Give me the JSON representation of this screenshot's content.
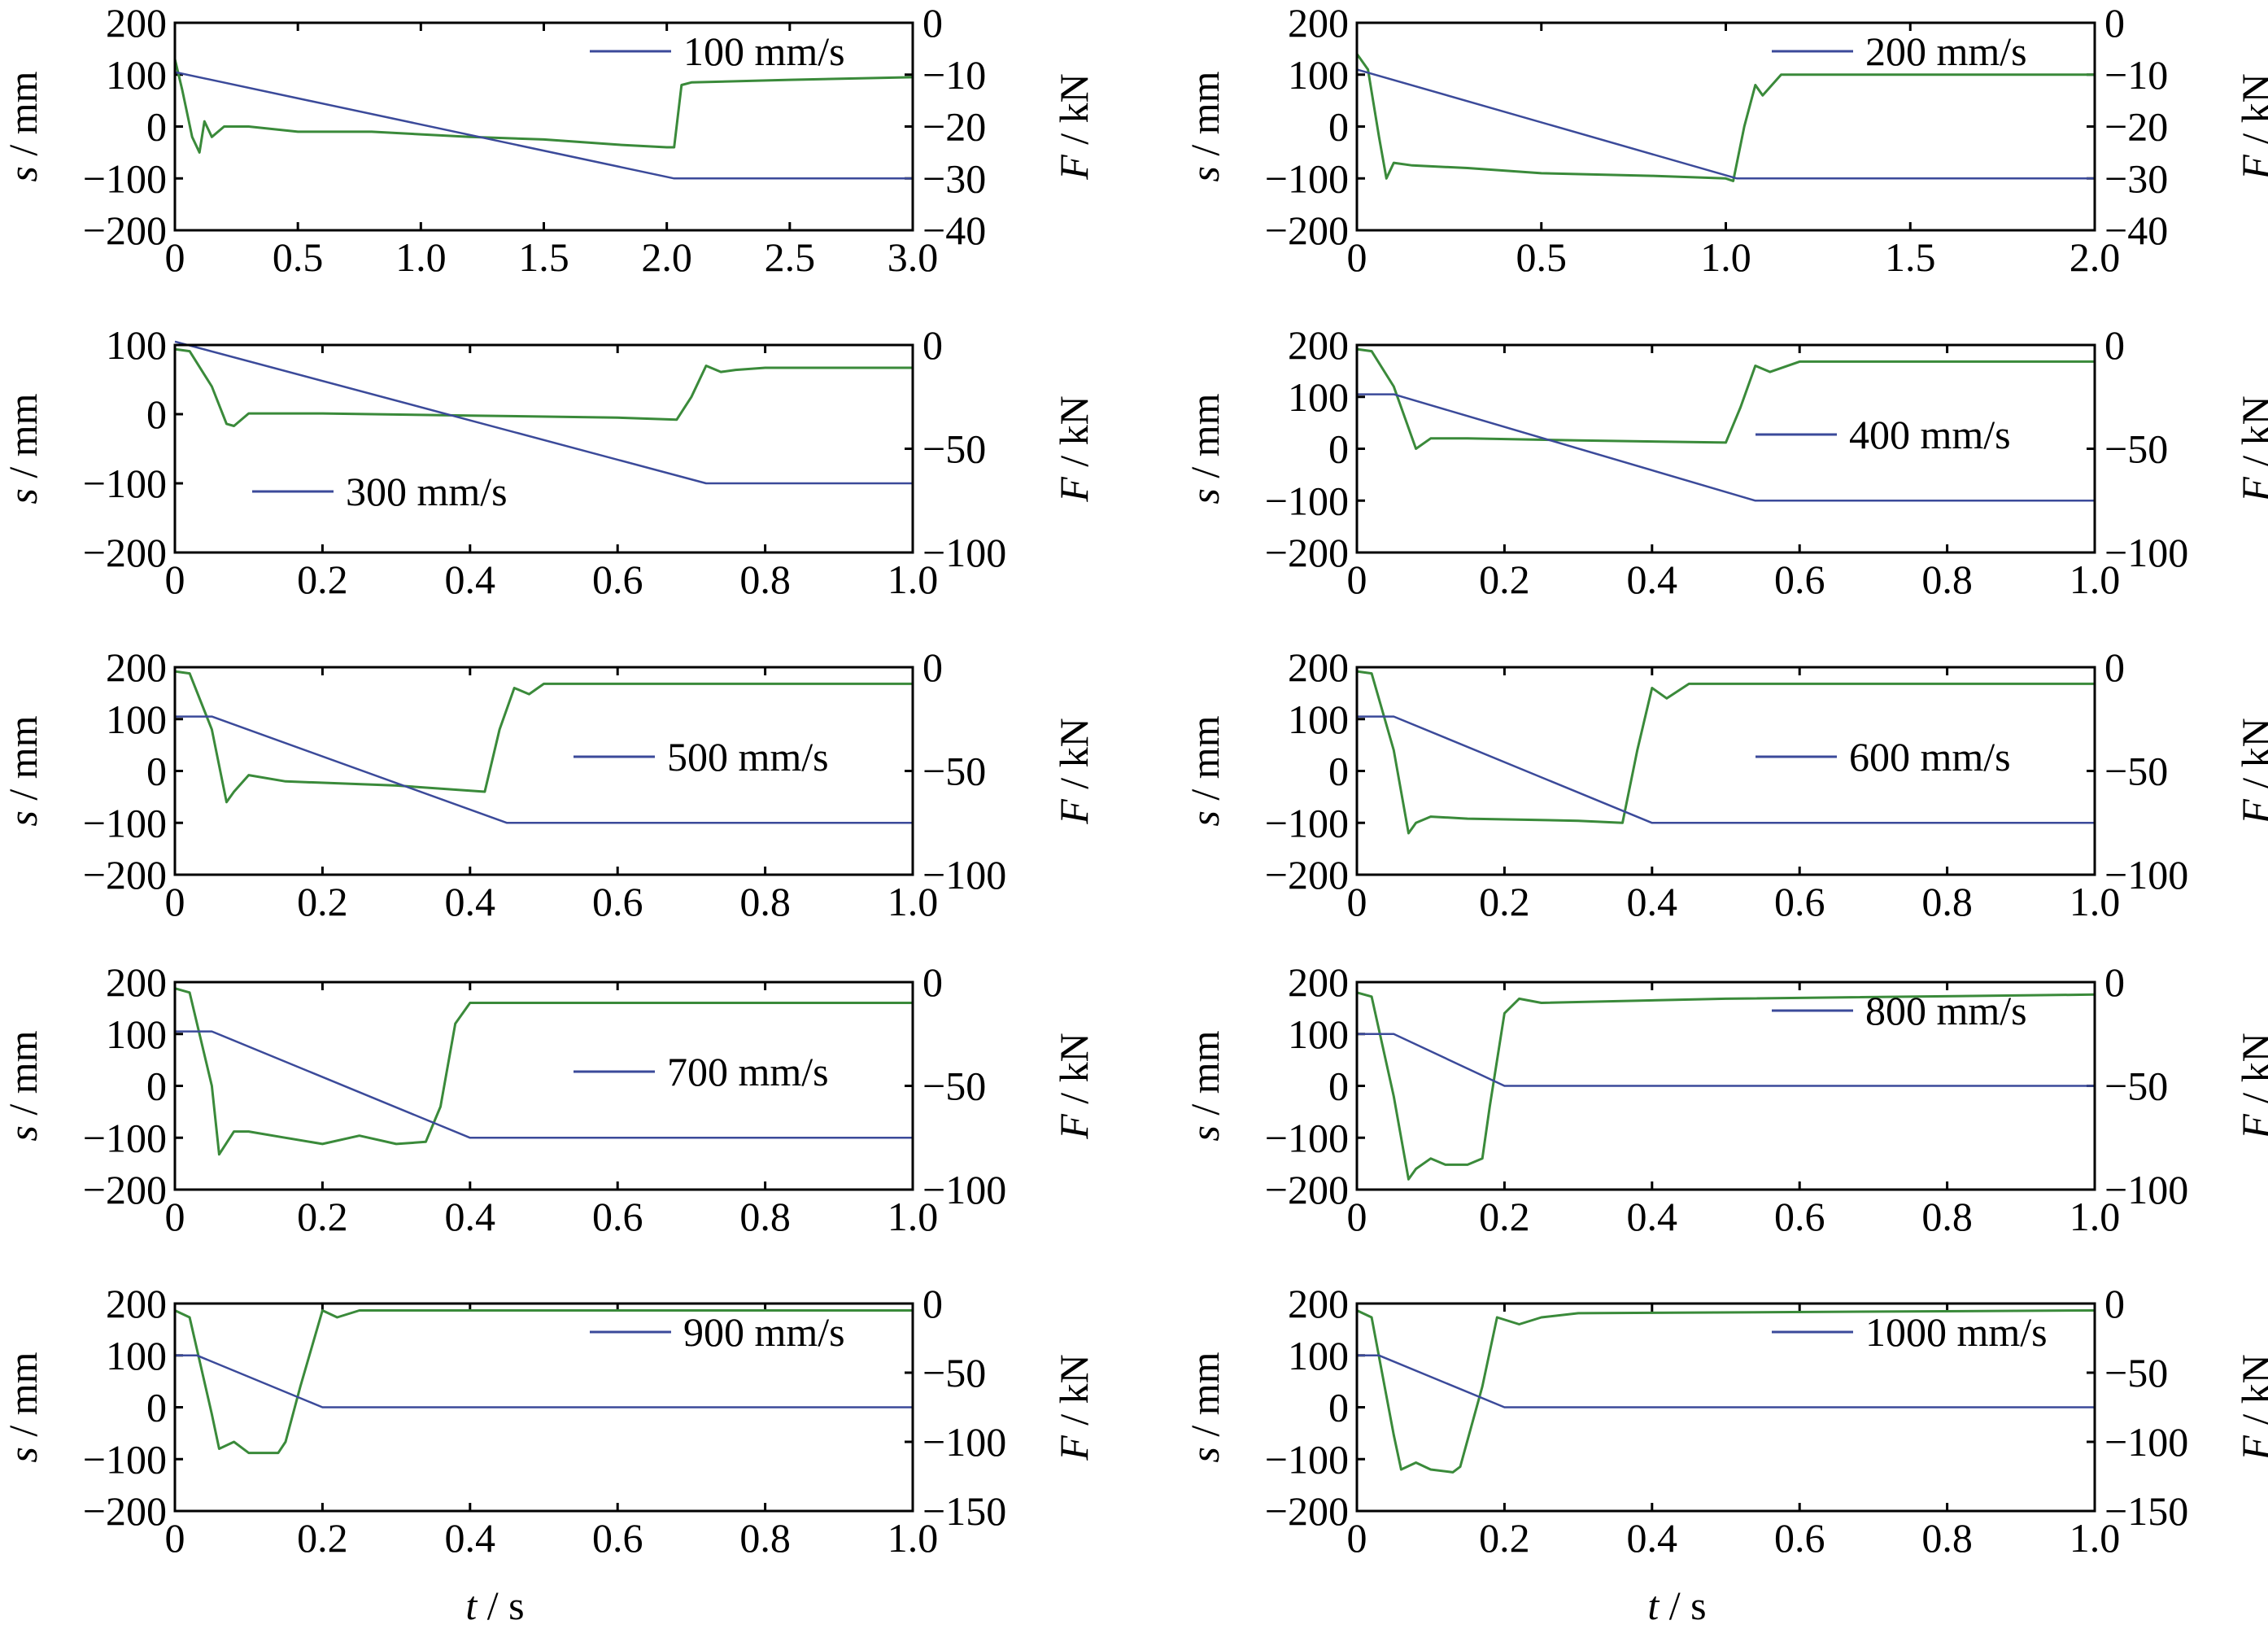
{
  "figure": {
    "xlabel_var": "t",
    "xlabel_unit": " / s",
    "left_label_var": "s",
    "left_label_unit": " / mm",
    "right_label_var": "F",
    "right_label_unit": " / kN"
  },
  "colors": {
    "displacement": "#3b4a9a",
    "force": "#3a8a3a"
  },
  "chart_data": [
    {
      "type": "line",
      "legend": "100 mm/s",
      "legend_pos": "top-right",
      "xlim": [
        0,
        3.0
      ],
      "xticks": [
        "0",
        "0.5",
        "1.0",
        "1.5",
        "2.0",
        "2.5",
        "3.0"
      ],
      "ylim": [
        -200,
        200
      ],
      "yticks": [
        "200",
        "100",
        "0",
        "−100",
        "−200"
      ],
      "y2lim": [
        -40,
        0
      ],
      "y2ticks": [
        "0",
        "−10",
        "−20",
        "−30",
        "−40"
      ],
      "displacement": {
        "x": [
          0,
          2.03,
          3.0
        ],
        "y": [
          105,
          -100,
          -100
        ]
      },
      "force": {
        "x": [
          0,
          0.03,
          0.07,
          0.1,
          0.12,
          0.15,
          0.2,
          0.3,
          0.5,
          0.8,
          1.0,
          1.2,
          1.5,
          1.8,
          2.0,
          2.03,
          2.06,
          2.1,
          2.5,
          3.0
        ],
        "y": [
          -7,
          -13,
          -22,
          -25,
          -19,
          -22,
          -20,
          -20,
          -21,
          -21,
          -21.5,
          -22,
          -22.5,
          -23.5,
          -24,
          -24,
          -12,
          -11.5,
          -11,
          -10.5
        ]
      }
    },
    {
      "type": "line",
      "legend": "200 mm/s",
      "legend_pos": "top-right",
      "xlim": [
        0,
        2.0
      ],
      "xticks": [
        "0",
        "0.5",
        "1.0",
        "1.5",
        "2.0"
      ],
      "ylim": [
        -200,
        200
      ],
      "yticks": [
        "200",
        "100",
        "0",
        "−100",
        "−200"
      ],
      "y2lim": [
        -40,
        0
      ],
      "y2ticks": [
        "0",
        "−10",
        "−20",
        "−30",
        "−40"
      ],
      "displacement": {
        "x": [
          0,
          1.03,
          2.0
        ],
        "y": [
          110,
          -100,
          -100
        ]
      },
      "force": {
        "x": [
          0,
          0.03,
          0.06,
          0.08,
          0.1,
          0.15,
          0.3,
          0.5,
          0.8,
          1.0,
          1.02,
          1.05,
          1.08,
          1.1,
          1.15,
          1.5,
          2.0
        ],
        "y": [
          -6,
          -9,
          -22,
          -30,
          -27,
          -27.5,
          -28,
          -29,
          -29.5,
          -30,
          -30.5,
          -20,
          -12,
          -14,
          -10,
          -10,
          -10
        ]
      }
    },
    {
      "type": "line",
      "legend": "300 mm/s",
      "legend_pos": "lower-left",
      "xlim": [
        0,
        1.0
      ],
      "xticks": [
        "0",
        "0.2",
        "0.4",
        "0.6",
        "0.8",
        "1.0"
      ],
      "ylim": [
        -200,
        100
      ],
      "yticks": [
        "100",
        "0",
        "−100",
        "−200"
      ],
      "y2lim": [
        -100,
        0
      ],
      "y2ticks": [
        "0",
        "−50",
        "−100"
      ],
      "displacement": {
        "x": [
          0,
          0.72,
          1.0
        ],
        "y": [
          105,
          -100,
          -100
        ]
      },
      "force": {
        "x": [
          0,
          0.02,
          0.05,
          0.07,
          0.08,
          0.1,
          0.12,
          0.2,
          0.4,
          0.6,
          0.68,
          0.7,
          0.72,
          0.74,
          0.76,
          0.8,
          1.0
        ],
        "y": [
          -2,
          -3,
          -20,
          -38,
          -39,
          -33,
          -33,
          -33,
          -34,
          -35,
          -36,
          -25,
          -10,
          -13,
          -12,
          -11,
          -11
        ]
      }
    },
    {
      "type": "line",
      "legend": "400 mm/s",
      "legend_pos": "right",
      "xlim": [
        0,
        1.0
      ],
      "xticks": [
        "0",
        "0.2",
        "0.4",
        "0.6",
        "0.8",
        "1.0"
      ],
      "ylim": [
        -200,
        200
      ],
      "yticks": [
        "200",
        "100",
        "0",
        "−100",
        "−200"
      ],
      "y2lim": [
        -100,
        0
      ],
      "y2ticks": [
        "0",
        "−50",
        "−100"
      ],
      "displacement": {
        "x": [
          0,
          0.05,
          0.54,
          1.0
        ],
        "y": [
          105,
          105,
          -100,
          -100
        ]
      },
      "force": {
        "x": [
          0,
          0.02,
          0.05,
          0.08,
          0.1,
          0.12,
          0.15,
          0.3,
          0.5,
          0.52,
          0.54,
          0.56,
          0.6,
          0.8,
          1.0
        ],
        "y": [
          -2,
          -3,
          -20,
          -50,
          -45,
          -45,
          -45,
          -46,
          -47,
          -30,
          -10,
          -13,
          -8,
          -8,
          -8
        ]
      }
    },
    {
      "type": "line",
      "legend": "500 mm/s",
      "legend_pos": "right",
      "xlim": [
        0,
        1.0
      ],
      "xticks": [
        "0",
        "0.2",
        "0.4",
        "0.6",
        "0.8",
        "1.0"
      ],
      "ylim": [
        -200,
        200
      ],
      "yticks": [
        "200",
        "100",
        "0",
        "−100",
        "−200"
      ],
      "y2lim": [
        -100,
        0
      ],
      "y2ticks": [
        "0",
        "−50",
        "−100"
      ],
      "displacement": {
        "x": [
          0,
          0.05,
          0.45,
          1.0
        ],
        "y": [
          105,
          105,
          -100,
          -100
        ]
      },
      "force": {
        "x": [
          0,
          0.02,
          0.05,
          0.07,
          0.08,
          0.1,
          0.15,
          0.3,
          0.42,
          0.44,
          0.46,
          0.48,
          0.5,
          0.6,
          1.0
        ],
        "y": [
          -2,
          -3,
          -30,
          -65,
          -60,
          -52,
          -55,
          -57,
          -60,
          -30,
          -10,
          -13,
          -8,
          -8,
          -8
        ]
      }
    },
    {
      "type": "line",
      "legend": "600 mm/s",
      "legend_pos": "right",
      "xlim": [
        0,
        1.0
      ],
      "xticks": [
        "0",
        "0.2",
        "0.4",
        "0.6",
        "0.8",
        "1.0"
      ],
      "ylim": [
        -200,
        200
      ],
      "yticks": [
        "200",
        "100",
        "0",
        "−100",
        "−200"
      ],
      "y2lim": [
        -100,
        0
      ],
      "y2ticks": [
        "0",
        "−50",
        "−100"
      ],
      "displacement": {
        "x": [
          0,
          0.05,
          0.4,
          1.0
        ],
        "y": [
          105,
          105,
          -100,
          -100
        ]
      },
      "force": {
        "x": [
          0,
          0.02,
          0.05,
          0.07,
          0.08,
          0.1,
          0.15,
          0.3,
          0.36,
          0.38,
          0.4,
          0.42,
          0.45,
          0.6,
          1.0
        ],
        "y": [
          -2,
          -3,
          -40,
          -80,
          -75,
          -72,
          -73,
          -74,
          -75,
          -40,
          -10,
          -15,
          -8,
          -8,
          -8
        ]
      }
    },
    {
      "type": "line",
      "legend": "700 mm/s",
      "legend_pos": "right",
      "xlim": [
        0,
        1.0
      ],
      "xticks": [
        "0",
        "0.2",
        "0.4",
        "0.6",
        "0.8",
        "1.0"
      ],
      "ylim": [
        -200,
        200
      ],
      "yticks": [
        "200",
        "100",
        "0",
        "−100",
        "−200"
      ],
      "y2lim": [
        -100,
        0
      ],
      "y2ticks": [
        "0",
        "−50",
        "−100"
      ],
      "displacement": {
        "x": [
          0,
          0.05,
          0.4,
          1.0
        ],
        "y": [
          105,
          105,
          -100,
          -100
        ]
      },
      "force": {
        "x": [
          0,
          0.02,
          0.05,
          0.06,
          0.08,
          0.1,
          0.15,
          0.2,
          0.25,
          0.3,
          0.34,
          0.36,
          0.38,
          0.4,
          0.5,
          1.0
        ],
        "y": [
          -3,
          -5,
          -50,
          -83,
          -72,
          -72,
          -75,
          -78,
          -74,
          -78,
          -77,
          -60,
          -20,
          -10,
          -10,
          -10
        ]
      }
    },
    {
      "type": "line",
      "legend": "800 mm/s",
      "legend_pos": "top-right",
      "xlim": [
        0,
        1.0
      ],
      "xticks": [
        "0",
        "0.2",
        "0.4",
        "0.6",
        "0.8",
        "1.0"
      ],
      "ylim": [
        -200,
        200
      ],
      "yticks": [
        "200",
        "100",
        "0",
        "−100",
        "−200"
      ],
      "y2lim": [
        -100,
        0
      ],
      "y2ticks": [
        "0",
        "−50",
        "−100"
      ],
      "displacement": {
        "x": [
          0,
          0.05,
          0.2,
          1.0
        ],
        "y": [
          100,
          100,
          0,
          0
        ]
      },
      "force": {
        "x": [
          0,
          0.02,
          0.05,
          0.07,
          0.08,
          0.1,
          0.12,
          0.15,
          0.17,
          0.18,
          0.2,
          0.22,
          0.25,
          0.5,
          1.0
        ],
        "y": [
          -5,
          -7,
          -55,
          -95,
          -90,
          -85,
          -88,
          -88,
          -85,
          -60,
          -15,
          -8,
          -10,
          -8,
          -6
        ]
      }
    },
    {
      "type": "line",
      "legend": "900 mm/s",
      "legend_pos": "top-right",
      "xlim": [
        0,
        1.0
      ],
      "xticks": [
        "0",
        "0.2",
        "0.4",
        "0.6",
        "0.8",
        "1.0"
      ],
      "ylim": [
        -200,
        200
      ],
      "yticks": [
        "200",
        "100",
        "0",
        "−100",
        "−200"
      ],
      "y2lim": [
        -150,
        0
      ],
      "y2ticks": [
        "0",
        "−50",
        "−100",
        "−150"
      ],
      "displacement": {
        "x": [
          0,
          0.03,
          0.2,
          1.0
        ],
        "y": [
          100,
          100,
          0,
          0
        ]
      },
      "force": {
        "x": [
          0,
          0.02,
          0.05,
          0.06,
          0.08,
          0.1,
          0.14,
          0.15,
          0.17,
          0.2,
          0.22,
          0.25,
          1.0
        ],
        "y": [
          -5,
          -10,
          -80,
          -105,
          -100,
          -108,
          -108,
          -100,
          -60,
          -5,
          -10,
          -5,
          -5
        ]
      }
    },
    {
      "type": "line",
      "legend": "1000 mm/s",
      "legend_pos": "top-right",
      "xlim": [
        0,
        1.0
      ],
      "xticks": [
        "0",
        "0.2",
        "0.4",
        "0.6",
        "0.8",
        "1.0"
      ],
      "ylim": [
        -200,
        200
      ],
      "yticks": [
        "200",
        "100",
        "0",
        "−100",
        "−200"
      ],
      "y2lim": [
        -150,
        0
      ],
      "y2ticks": [
        "0",
        "−50",
        "−100",
        "−150"
      ],
      "displacement": {
        "x": [
          0,
          0.03,
          0.2,
          1.0
        ],
        "y": [
          100,
          100,
          0,
          0
        ]
      },
      "force": {
        "x": [
          0,
          0.02,
          0.05,
          0.06,
          0.08,
          0.1,
          0.13,
          0.14,
          0.17,
          0.19,
          0.22,
          0.25,
          0.3,
          1.0
        ],
        "y": [
          -5,
          -10,
          -95,
          -120,
          -115,
          -120,
          -122,
          -118,
          -60,
          -10,
          -15,
          -10,
          -7,
          -5
        ]
      }
    }
  ]
}
